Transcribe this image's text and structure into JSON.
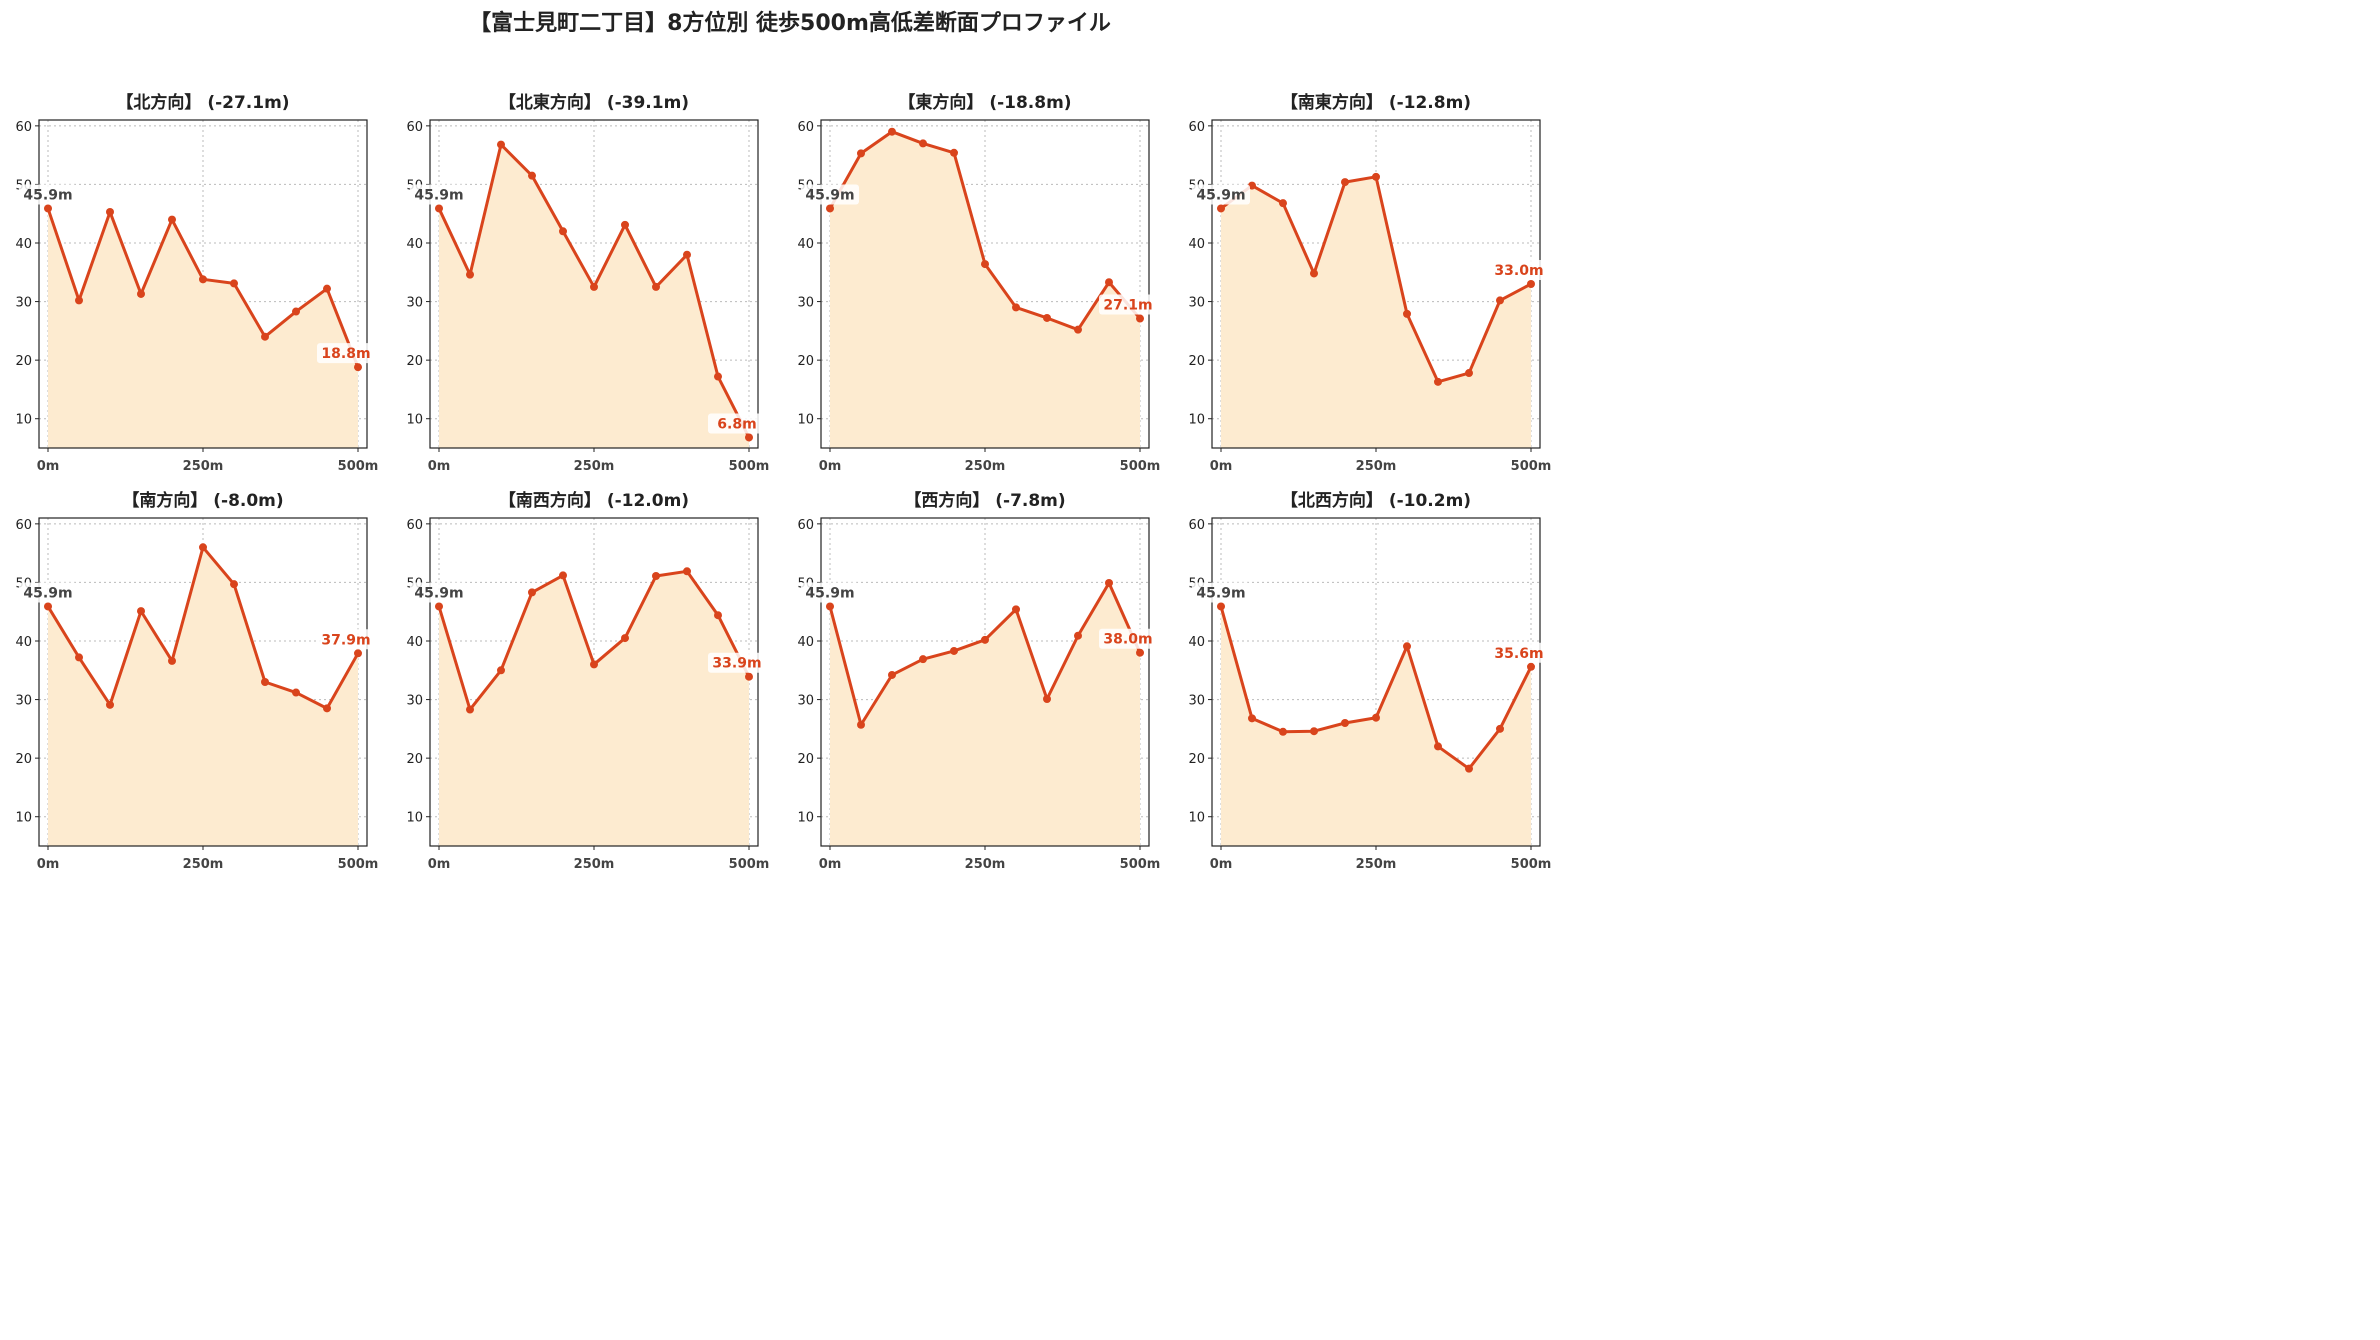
{
  "title": "【富士見町二丁目】8方位別 徒歩500m高低差断面プロファイル",
  "colors": {
    "line": "#d9441c",
    "fill": "#fdebd0",
    "grid": "#bbbbbb",
    "start_label": "#444444",
    "end_label": "#d9441c"
  },
  "chart_data": [
    {
      "type": "area",
      "title": "【北方向】 (-27.1m)",
      "x": [
        0,
        50,
        100,
        150,
        200,
        250,
        300,
        350,
        400,
        450,
        500
      ],
      "y": [
        45.9,
        30.2,
        45.3,
        31.3,
        44.0,
        33.8,
        33.1,
        24.0,
        28.3,
        32.2,
        18.8
      ],
      "start_label": "45.9m",
      "end_label": "18.8m",
      "xticks": [
        "0m",
        "250m",
        "500m"
      ],
      "yticks": [
        "10",
        "20",
        "30",
        "40",
        "50",
        "60"
      ],
      "xlim": [
        0,
        500
      ],
      "ylim": [
        5,
        61
      ],
      "grid": true
    },
    {
      "type": "area",
      "title": "【北東方向】 (-39.1m)",
      "x": [
        0,
        50,
        100,
        150,
        200,
        250,
        300,
        350,
        400,
        450,
        500
      ],
      "y": [
        45.9,
        34.6,
        56.8,
        51.5,
        42.0,
        32.5,
        43.1,
        32.5,
        38.0,
        17.2,
        6.8
      ],
      "start_label": "45.9m",
      "end_label": "6.8m",
      "xticks": [
        "0m",
        "250m",
        "500m"
      ],
      "yticks": [
        "10",
        "20",
        "30",
        "40",
        "50",
        "60"
      ],
      "xlim": [
        0,
        500
      ],
      "ylim": [
        5,
        61
      ],
      "grid": true
    },
    {
      "type": "area",
      "title": "【東方向】 (-18.8m)",
      "x": [
        0,
        50,
        100,
        150,
        200,
        250,
        300,
        350,
        400,
        450,
        500
      ],
      "y": [
        45.9,
        55.3,
        59.0,
        57.0,
        55.4,
        36.4,
        29.0,
        27.2,
        25.2,
        33.3,
        27.1
      ],
      "start_label": "45.9m",
      "end_label": "27.1m",
      "xticks": [
        "0m",
        "250m",
        "500m"
      ],
      "yticks": [
        "10",
        "20",
        "30",
        "40",
        "50",
        "60"
      ],
      "xlim": [
        0,
        500
      ],
      "ylim": [
        5,
        61
      ],
      "grid": true
    },
    {
      "type": "area",
      "title": "【南東方向】 (-12.8m)",
      "x": [
        0,
        50,
        100,
        150,
        200,
        250,
        300,
        350,
        400,
        450,
        500
      ],
      "y": [
        45.9,
        49.8,
        46.8,
        34.8,
        50.4,
        51.3,
        27.9,
        16.3,
        17.8,
        30.2,
        33.0
      ],
      "start_label": "45.9m",
      "end_label": "33.0m",
      "xticks": [
        "0m",
        "250m",
        "500m"
      ],
      "yticks": [
        "10",
        "20",
        "30",
        "40",
        "50",
        "60"
      ],
      "xlim": [
        0,
        500
      ],
      "ylim": [
        5,
        61
      ],
      "grid": true
    },
    {
      "type": "area",
      "title": "【南方向】 (-8.0m)",
      "x": [
        0,
        50,
        100,
        150,
        200,
        250,
        300,
        350,
        400,
        450,
        500
      ],
      "y": [
        45.9,
        37.2,
        29.1,
        45.1,
        36.6,
        56.0,
        49.7,
        33.0,
        31.2,
        28.5,
        37.9
      ],
      "start_label": "45.9m",
      "end_label": "37.9m",
      "xticks": [
        "0m",
        "250m",
        "500m"
      ],
      "yticks": [
        "10",
        "20",
        "30",
        "40",
        "50",
        "60"
      ],
      "xlim": [
        0,
        500
      ],
      "ylim": [
        5,
        61
      ],
      "grid": true
    },
    {
      "type": "area",
      "title": "【南西方向】 (-12.0m)",
      "x": [
        0,
        50,
        100,
        150,
        200,
        250,
        300,
        350,
        400,
        450,
        500
      ],
      "y": [
        45.9,
        28.3,
        35.0,
        48.3,
        51.2,
        36.0,
        40.5,
        51.1,
        51.9,
        44.4,
        33.9
      ],
      "start_label": "45.9m",
      "end_label": "33.9m",
      "xticks": [
        "0m",
        "250m",
        "500m"
      ],
      "yticks": [
        "10",
        "20",
        "30",
        "40",
        "50",
        "60"
      ],
      "xlim": [
        0,
        500
      ],
      "ylim": [
        5,
        61
      ],
      "grid": true
    },
    {
      "type": "area",
      "title": "【西方向】 (-7.8m)",
      "x": [
        0,
        50,
        100,
        150,
        200,
        250,
        300,
        350,
        400,
        450,
        500
      ],
      "y": [
        45.9,
        25.7,
        34.2,
        36.9,
        38.3,
        40.2,
        45.4,
        30.1,
        40.9,
        49.9,
        38.0
      ],
      "start_label": "45.9m",
      "end_label": "38.0m",
      "xticks": [
        "0m",
        "250m",
        "500m"
      ],
      "yticks": [
        "10",
        "20",
        "30",
        "40",
        "50",
        "60"
      ],
      "xlim": [
        0,
        500
      ],
      "ylim": [
        5,
        61
      ],
      "grid": true
    },
    {
      "type": "area",
      "title": "【北西方向】 (-10.2m)",
      "x": [
        0,
        50,
        100,
        150,
        200,
        250,
        300,
        350,
        400,
        450,
        500
      ],
      "y": [
        45.9,
        26.8,
        24.5,
        24.6,
        26.0,
        26.9,
        39.1,
        22.0,
        18.2,
        25.0,
        35.6
      ],
      "start_label": "45.9m",
      "end_label": "35.6m",
      "xticks": [
        "0m",
        "250m",
        "500m"
      ],
      "yticks": [
        "10",
        "20",
        "30",
        "40",
        "50",
        "60"
      ],
      "xlim": [
        0,
        500
      ],
      "ylim": [
        5,
        61
      ],
      "grid": true
    }
  ]
}
